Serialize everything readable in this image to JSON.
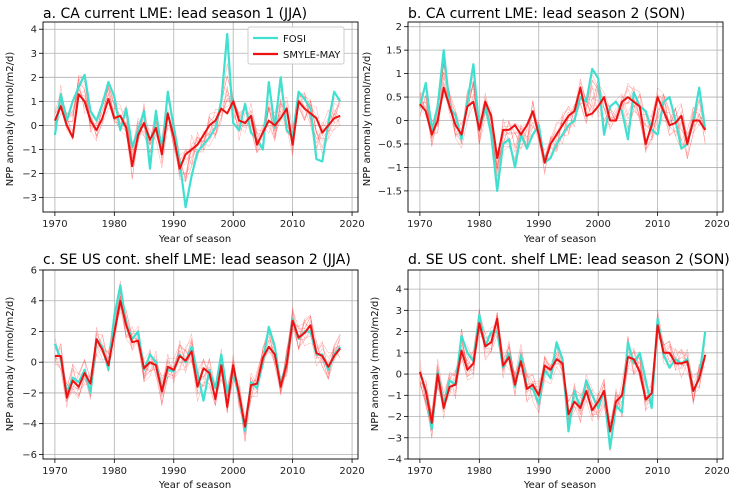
{
  "chart_data": [
    {
      "type": "line",
      "title": "a. CA current LME: lead season 1 (JJA)",
      "xlabel": "Year of season",
      "ylabel": "NPP anomaly (mmol/m2/d)",
      "xlim": [
        1968,
        2021
      ],
      "ylim": [
        -3.6,
        4.3
      ],
      "xticks": [
        1970,
        1980,
        1990,
        2000,
        2010,
        2020
      ],
      "yticks": [
        -3,
        -2,
        -1,
        0,
        1,
        2,
        3,
        4
      ],
      "grid": true,
      "legend": {
        "placement": "top-right",
        "entries": [
          "FOSI",
          "SMYLE-MAY"
        ]
      },
      "series": [
        {
          "name": "FOSI",
          "color": "#40e0d0",
          "x": [
            1970,
            1971,
            1972,
            1973,
            1974,
            1975,
            1976,
            1977,
            1978,
            1979,
            1980,
            1981,
            1982,
            1983,
            1984,
            1985,
            1986,
            1987,
            1988,
            1989,
            1990,
            1991,
            1992,
            1993,
            1994,
            1995,
            1996,
            1997,
            1998,
            1999,
            2000,
            2001,
            2002,
            2003,
            2004,
            2005,
            2006,
            2007,
            2008,
            2009,
            2010,
            2011,
            2012,
            2013,
            2014,
            2015,
            2016,
            2017,
            2018
          ],
          "values": [
            -0.4,
            1.3,
            0.2,
            1.0,
            1.6,
            2.1,
            0.6,
            0.2,
            0.9,
            1.8,
            1.2,
            -0.2,
            0.7,
            -0.9,
            -0.2,
            0.6,
            -1.8,
            0.6,
            -1.1,
            1.4,
            -0.1,
            -1.5,
            -3.4,
            -2.1,
            -1.1,
            -0.8,
            -0.5,
            -0.1,
            1.0,
            3.8,
            0.1,
            -0.2,
            0.9,
            -0.3,
            -0.6,
            -1.0,
            1.8,
            -0.1,
            2.0,
            -0.2,
            -0.5,
            1.4,
            1.1,
            0.7,
            -1.4,
            -1.5,
            0.1,
            1.4,
            1.0
          ]
        },
        {
          "name": "SMYLE-MAY",
          "color": "#ee1111",
          "x": [
            1970,
            1971,
            1972,
            1973,
            1974,
            1975,
            1976,
            1977,
            1978,
            1979,
            1980,
            1981,
            1982,
            1983,
            1984,
            1985,
            1986,
            1987,
            1988,
            1989,
            1990,
            1991,
            1992,
            1993,
            1994,
            1995,
            1996,
            1997,
            1998,
            1999,
            2000,
            2001,
            2002,
            2003,
            2004,
            2005,
            2006,
            2007,
            2008,
            2009,
            2010,
            2011,
            2012,
            2013,
            2014,
            2015,
            2016,
            2017,
            2018
          ],
          "values": [
            0.2,
            0.8,
            0.0,
            -0.5,
            1.3,
            1.0,
            0.2,
            -0.2,
            0.3,
            1.1,
            0.3,
            0.4,
            -0.1,
            -1.7,
            -0.4,
            0.1,
            -0.6,
            -0.1,
            -1.2,
            0.5,
            -0.5,
            -1.8,
            -1.2,
            -1.0,
            -0.8,
            -0.4,
            0.0,
            0.2,
            0.7,
            0.5,
            1.0,
            0.2,
            0.1,
            0.4,
            -0.8,
            -0.3,
            0.2,
            0.0,
            0.3,
            0.7,
            -0.8,
            1.0,
            0.7,
            0.5,
            0.3,
            -0.3,
            0.0,
            0.3,
            0.4
          ]
        }
      ]
    },
    {
      "type": "line",
      "title": "b. CA current LME: lead season 2 (SON)",
      "xlabel": "Year of season",
      "ylabel": "NPP anomaly (mmol/m2/d)",
      "xlim": [
        1968,
        2021
      ],
      "ylim": [
        -1.95,
        2.1
      ],
      "xticks": [
        1970,
        1980,
        1990,
        2000,
        2010,
        2020
      ],
      "yticks": [
        -1.5,
        -1.0,
        -0.5,
        0.0,
        0.5,
        1.0,
        1.5,
        2.0
      ],
      "grid": true,
      "series": [
        {
          "name": "FOSI",
          "color": "#40e0d0",
          "x": [
            1970,
            1971,
            1972,
            1973,
            1974,
            1975,
            1976,
            1977,
            1978,
            1979,
            1980,
            1981,
            1982,
            1983,
            1984,
            1985,
            1986,
            1987,
            1988,
            1989,
            1990,
            1991,
            1992,
            1993,
            1994,
            1995,
            1996,
            1997,
            1998,
            1999,
            2000,
            2001,
            2002,
            2003,
            2004,
            2005,
            2006,
            2007,
            2008,
            2009,
            2010,
            2011,
            2012,
            2013,
            2014,
            2015,
            2016,
            2017,
            2018
          ],
          "values": [
            0.3,
            0.8,
            -0.2,
            0.3,
            1.5,
            0.3,
            0.1,
            -0.4,
            0.4,
            1.2,
            -0.2,
            0.3,
            -0.3,
            -1.5,
            -0.5,
            -0.4,
            -1.0,
            -0.3,
            -0.6,
            -0.3,
            -0.1,
            -0.9,
            -0.8,
            -0.5,
            -0.3,
            -0.1,
            0.0,
            0.5,
            0.4,
            1.1,
            0.9,
            -0.3,
            0.3,
            0.4,
            0.2,
            -0.4,
            0.6,
            0.3,
            0.2,
            -0.2,
            -0.3,
            0.4,
            0.5,
            0.0,
            -0.6,
            -0.5,
            0.0,
            0.7,
            -0.2
          ]
        },
        {
          "name": "SMYLE-MAY",
          "color": "#ee1111",
          "x": [
            1970,
            1971,
            1972,
            1973,
            1974,
            1975,
            1976,
            1977,
            1978,
            1979,
            1980,
            1981,
            1982,
            1983,
            1984,
            1985,
            1986,
            1987,
            1988,
            1989,
            1990,
            1991,
            1992,
            1993,
            1994,
            1995,
            1996,
            1997,
            1998,
            1999,
            2000,
            2001,
            2002,
            2003,
            2004,
            2005,
            2006,
            2007,
            2008,
            2009,
            2010,
            2011,
            2012,
            2013,
            2014,
            2015,
            2016,
            2017,
            2018
          ],
          "values": [
            0.35,
            0.2,
            -0.3,
            0.0,
            0.7,
            0.3,
            -0.1,
            -0.3,
            0.3,
            0.4,
            -0.2,
            0.4,
            0.1,
            -0.8,
            -0.2,
            -0.2,
            -0.1,
            -0.3,
            -0.1,
            0.2,
            -0.3,
            -0.9,
            -0.5,
            -0.3,
            -0.1,
            0.1,
            0.2,
            0.7,
            0.1,
            0.15,
            0.3,
            0.5,
            0.0,
            0.0,
            0.4,
            0.5,
            0.4,
            0.3,
            -0.5,
            -0.1,
            0.5,
            0.2,
            -0.1,
            -0.05,
            0.1,
            -0.5,
            0.0,
            0.0,
            -0.2
          ]
        }
      ]
    },
    {
      "type": "line",
      "title": "c. SE US cont. shelf LME: lead season 2 (JJA)",
      "xlabel": "Year of season",
      "ylabel": "NPP anomaly (mmol/m2/d)",
      "xlim": [
        1968,
        2021
      ],
      "ylim": [
        -6.3,
        6.0
      ],
      "xticks": [
        1970,
        1980,
        1990,
        2000,
        2010,
        2020
      ],
      "yticks": [
        -6,
        -4,
        -2,
        0,
        2,
        4,
        6
      ],
      "grid": true,
      "series": [
        {
          "name": "FOSI",
          "color": "#40e0d0",
          "x": [
            1970,
            1971,
            1972,
            1973,
            1974,
            1975,
            1976,
            1977,
            1978,
            1979,
            1980,
            1981,
            1982,
            1983,
            1984,
            1985,
            1986,
            1987,
            1988,
            1989,
            1990,
            1991,
            1992,
            1993,
            1994,
            1995,
            1996,
            1997,
            1998,
            1999,
            2000,
            2001,
            2002,
            2003,
            2004,
            2005,
            2006,
            2007,
            2008,
            2009,
            2010,
            2011,
            2012,
            2013,
            2014,
            2015,
            2016,
            2017,
            2018
          ],
          "values": [
            1.2,
            0.2,
            -2.0,
            -1.0,
            -1.3,
            -0.5,
            -2.0,
            1.5,
            1.0,
            -0.5,
            3.0,
            5.0,
            2.5,
            1.5,
            2.0,
            -0.5,
            0.5,
            0.0,
            -1.8,
            -0.5,
            -0.6,
            0.5,
            0.0,
            1.0,
            -0.7,
            -2.5,
            -0.5,
            -1.7,
            0.5,
            -2.0,
            -0.7,
            -2.2,
            -4.5,
            -1.3,
            -1.7,
            0.0,
            2.3,
            1.0,
            -1.5,
            0.0,
            2.8,
            1.5,
            2.0,
            2.0,
            0.5,
            0.5,
            -0.5,
            0.5,
            1.0
          ]
        },
        {
          "name": "SMYLE-MAY",
          "color": "#ee1111",
          "x": [
            1970,
            1971,
            1972,
            1973,
            1974,
            1975,
            1976,
            1977,
            1978,
            1979,
            1980,
            1981,
            1982,
            1983,
            1984,
            1985,
            1986,
            1987,
            1988,
            1989,
            1990,
            1991,
            1992,
            1993,
            1994,
            1995,
            1996,
            1997,
            1998,
            1999,
            2000,
            2001,
            2002,
            2003,
            2004,
            2005,
            2006,
            2007,
            2008,
            2009,
            2010,
            2011,
            2012,
            2013,
            2014,
            2015,
            2016,
            2017,
            2018
          ],
          "values": [
            0.4,
            0.4,
            -2.3,
            -1.2,
            -1.6,
            -0.7,
            -1.4,
            1.5,
            0.8,
            -0.2,
            1.9,
            4.0,
            2.4,
            1.3,
            1.4,
            -0.4,
            0.0,
            -0.2,
            -1.9,
            -0.3,
            -0.5,
            0.4,
            0.1,
            0.7,
            -1.6,
            -0.4,
            -0.7,
            -2.4,
            -0.2,
            -2.9,
            -0.2,
            -2.1,
            -4.2,
            -1.5,
            -1.4,
            0.3,
            1.0,
            0.5,
            -1.6,
            -0.1,
            2.7,
            1.6,
            1.9,
            2.4,
            0.6,
            0.4,
            -0.3,
            0.4,
            0.9
          ]
        }
      ]
    },
    {
      "type": "line",
      "title": "d. SE US cont. shelf LME: lead season 2 (SON)",
      "xlabel": "Year of season",
      "ylabel": "NPP anomaly (mmol/m2/d)",
      "xlim": [
        1968,
        2021
      ],
      "ylim": [
        -4.0,
        4.9
      ],
      "xticks": [
        1970,
        1980,
        1990,
        2000,
        2010,
        2020
      ],
      "yticks": [
        -4,
        -3,
        -2,
        -1,
        0,
        1,
        2,
        3,
        4
      ],
      "grid": true,
      "series": [
        {
          "name": "FOSI",
          "color": "#40e0d0",
          "x": [
            1970,
            1971,
            1972,
            1973,
            1974,
            1975,
            1976,
            1977,
            1978,
            1979,
            1980,
            1981,
            1982,
            1983,
            1984,
            1985,
            1986,
            1987,
            1988,
            1989,
            1990,
            1991,
            1992,
            1993,
            1994,
            1995,
            1996,
            1997,
            1998,
            1999,
            2000,
            2001,
            2002,
            2003,
            2004,
            2005,
            2006,
            2007,
            2008,
            2009,
            2010,
            2011,
            2012,
            2013,
            2014,
            2015,
            2016,
            2017,
            2018
          ],
          "values": [
            0.1,
            -0.8,
            -2.6,
            0.1,
            -1.5,
            -0.3,
            -0.5,
            1.8,
            1.0,
            0.6,
            2.8,
            1.3,
            2.0,
            2.0,
            0.3,
            1.0,
            -0.6,
            0.9,
            -0.6,
            -0.7,
            -1.4,
            0.2,
            -0.2,
            1.5,
            0.7,
            -2.7,
            -0.8,
            -1.6,
            -0.3,
            -1.0,
            -1.6,
            -0.8,
            -3.5,
            -1.5,
            -1.8,
            1.5,
            0.5,
            1.0,
            -0.3,
            -1.6,
            2.6,
            0.9,
            0.3,
            0.7,
            0.5,
            0.7,
            -0.8,
            -0.2,
            2.0
          ]
        },
        {
          "name": "SMYLE-MAY",
          "color": "#ee1111",
          "x": [
            1970,
            1971,
            1972,
            1973,
            1974,
            1975,
            1976,
            1977,
            1978,
            1979,
            1980,
            1981,
            1982,
            1983,
            1984,
            1985,
            1986,
            1987,
            1988,
            1989,
            1990,
            1991,
            1992,
            1993,
            1994,
            1995,
            1996,
            1997,
            1998,
            1999,
            2000,
            2001,
            2002,
            2003,
            2004,
            2005,
            2006,
            2007,
            2008,
            2009,
            2010,
            2011,
            2012,
            2013,
            2014,
            2015,
            2016,
            2017,
            2018
          ],
          "values": [
            0.1,
            -0.8,
            -2.3,
            0.0,
            -1.6,
            -0.6,
            -0.5,
            1.1,
            0.2,
            0.5,
            2.4,
            1.3,
            1.5,
            2.6,
            0.4,
            0.8,
            -0.5,
            0.6,
            -0.7,
            -0.5,
            -1.0,
            0.4,
            0.2,
            0.7,
            0.5,
            -1.9,
            -1.3,
            -1.6,
            -0.8,
            -1.7,
            -1.3,
            -0.8,
            -2.7,
            -1.3,
            -1.0,
            0.8,
            0.7,
            0.1,
            -1.2,
            -0.9,
            2.3,
            1.0,
            1.0,
            0.5,
            0.5,
            0.6,
            -0.8,
            -0.2,
            0.9
          ]
        }
      ]
    }
  ]
}
